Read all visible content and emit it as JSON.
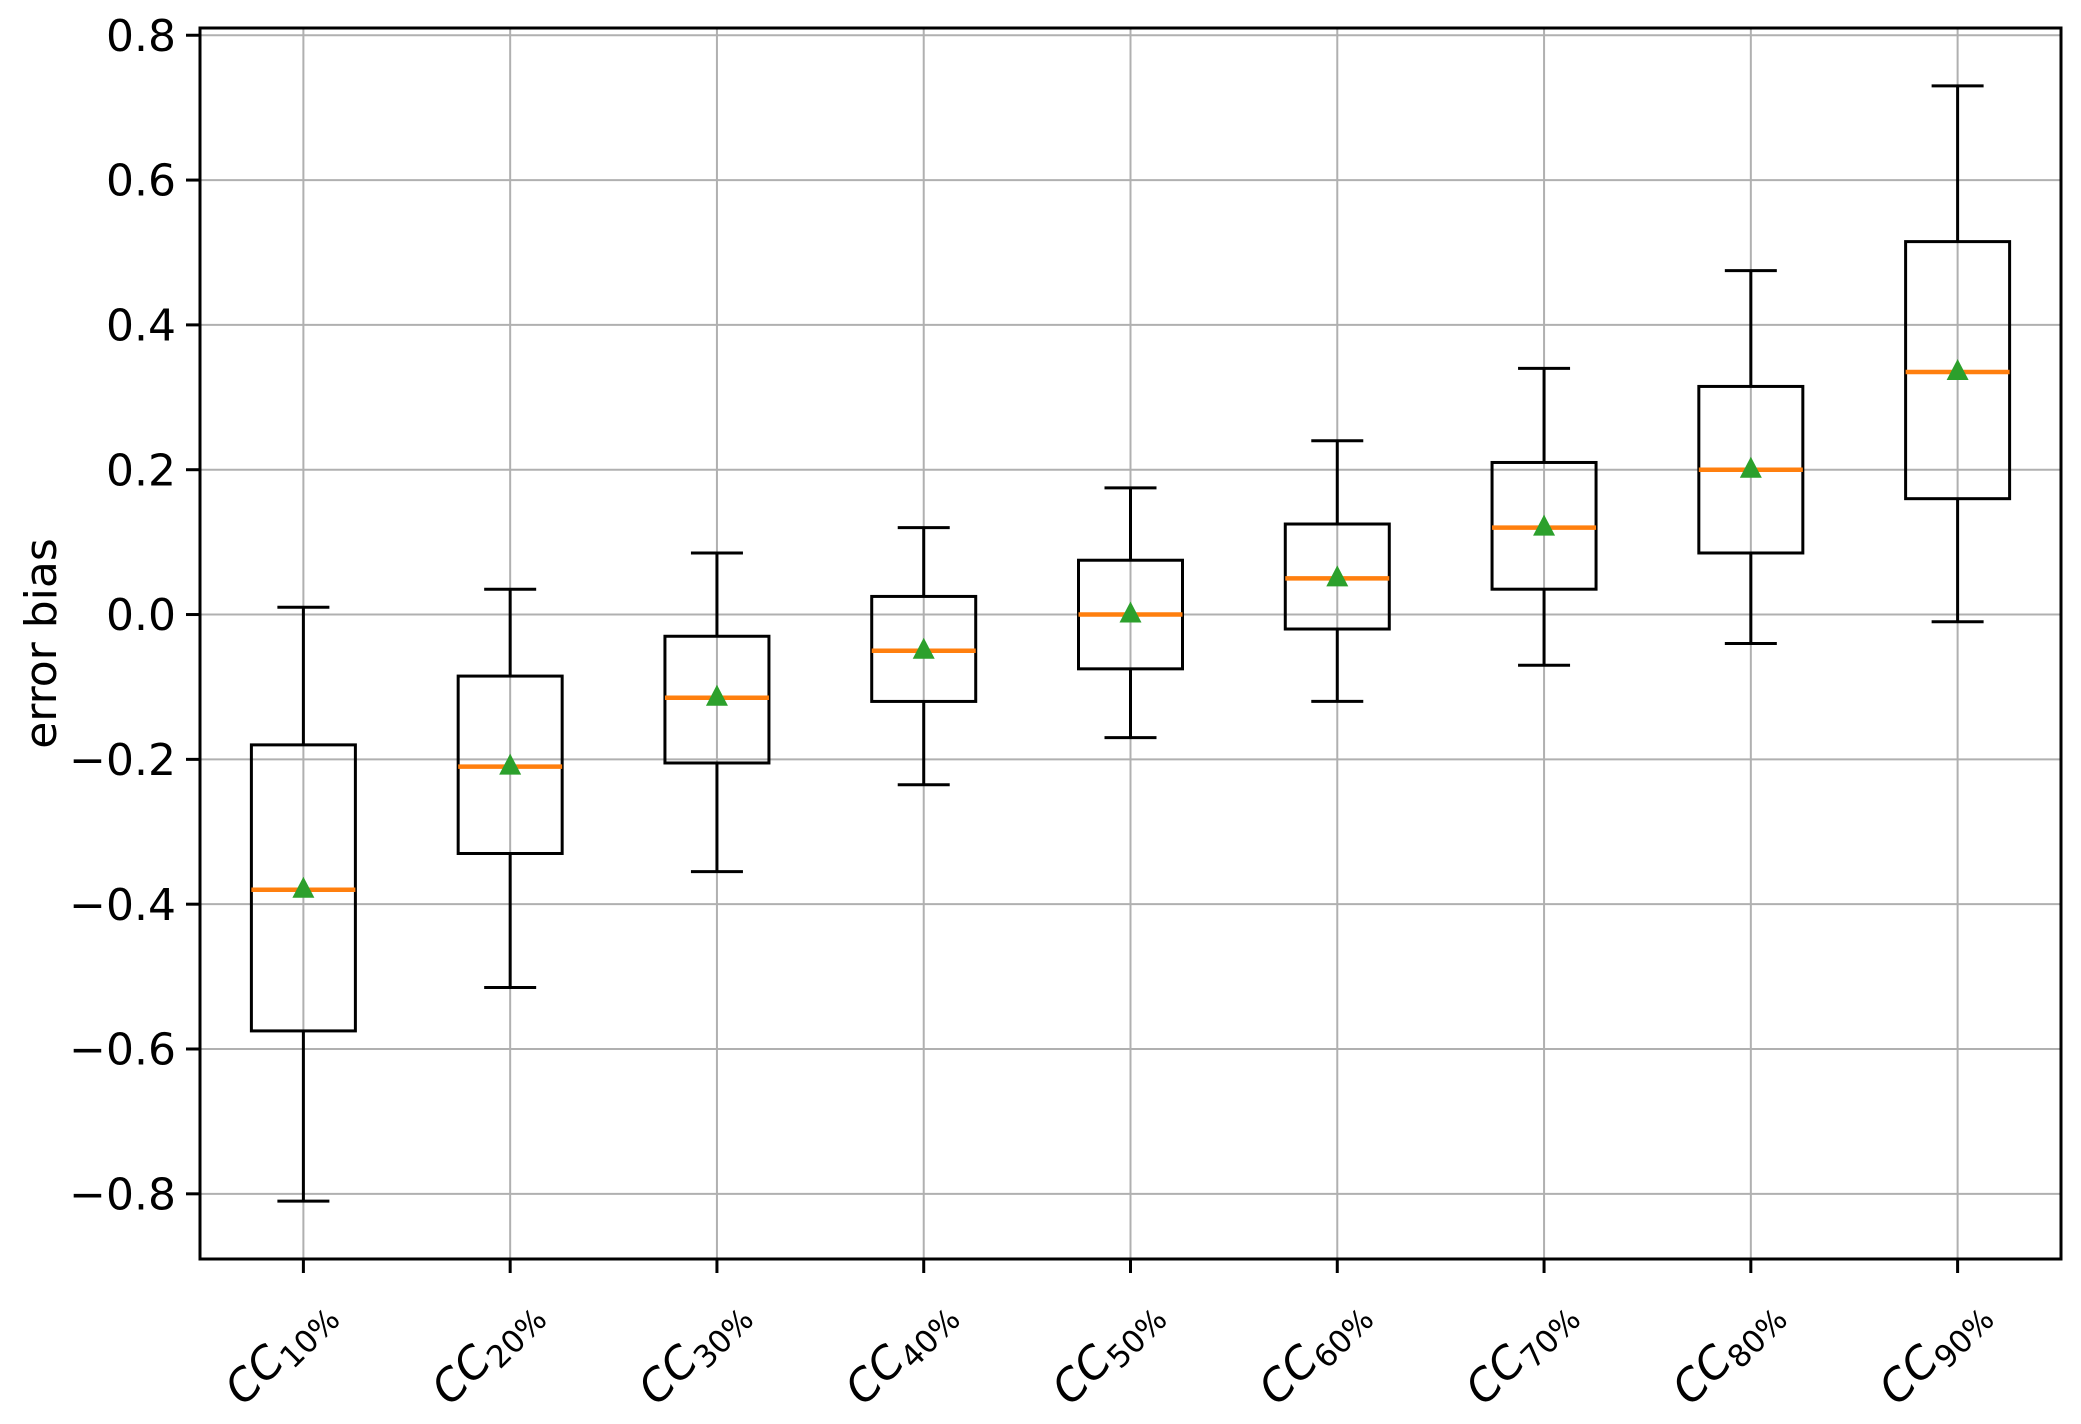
{
  "chart_data": {
    "type": "boxplot",
    "title": "",
    "xlabel": "",
    "ylabel": "error bias",
    "grid": true,
    "legend": "none",
    "ylim": [
      -0.89,
      0.81
    ],
    "yticks": [
      0.8,
      0.6,
      0.4,
      0.2,
      0.0,
      -0.2,
      -0.4,
      -0.6,
      -0.8
    ],
    "categories": [
      {
        "prefix": "CC",
        "sub": "10%"
      },
      {
        "prefix": "CC",
        "sub": "20%"
      },
      {
        "prefix": "CC",
        "sub": "30%"
      },
      {
        "prefix": "CC",
        "sub": "40%"
      },
      {
        "prefix": "CC",
        "sub": "50%"
      },
      {
        "prefix": "CC",
        "sub": "60%"
      },
      {
        "prefix": "CC",
        "sub": "70%"
      },
      {
        "prefix": "CC",
        "sub": "80%"
      },
      {
        "prefix": "CC",
        "sub": "90%"
      }
    ],
    "boxes": [
      {
        "whislo": -0.81,
        "q1": -0.575,
        "med": -0.38,
        "mean": -0.38,
        "q3": -0.18,
        "whishi": 0.01
      },
      {
        "whislo": -0.515,
        "q1": -0.33,
        "med": -0.21,
        "mean": -0.21,
        "q3": -0.085,
        "whishi": 0.035
      },
      {
        "whislo": -0.355,
        "q1": -0.205,
        "med": -0.115,
        "mean": -0.115,
        "q3": -0.03,
        "whishi": 0.085
      },
      {
        "whislo": -0.235,
        "q1": -0.12,
        "med": -0.05,
        "mean": -0.05,
        "q3": 0.025,
        "whishi": 0.12
      },
      {
        "whislo": -0.17,
        "q1": -0.075,
        "med": 0.0,
        "mean": 0.0,
        "q3": 0.075,
        "whishi": 0.175
      },
      {
        "whislo": -0.12,
        "q1": -0.02,
        "med": 0.05,
        "mean": 0.05,
        "q3": 0.125,
        "whishi": 0.24
      },
      {
        "whislo": -0.07,
        "q1": 0.035,
        "med": 0.12,
        "mean": 0.12,
        "q3": 0.21,
        "whishi": 0.34
      },
      {
        "whislo": -0.04,
        "q1": 0.085,
        "med": 0.2,
        "mean": 0.2,
        "q3": 0.315,
        "whishi": 0.475
      },
      {
        "whislo": -0.01,
        "q1": 0.16,
        "med": 0.335,
        "mean": 0.335,
        "q3": 0.515,
        "whishi": 0.73
      }
    ],
    "colors": {
      "box_edge": "#000000",
      "median": "#ff7f0e",
      "mean_marker": "#2ca02c",
      "gridline": "#b0b0b0",
      "spine": "#000000",
      "tick_label": "#000000",
      "background": "#ffffff"
    }
  }
}
